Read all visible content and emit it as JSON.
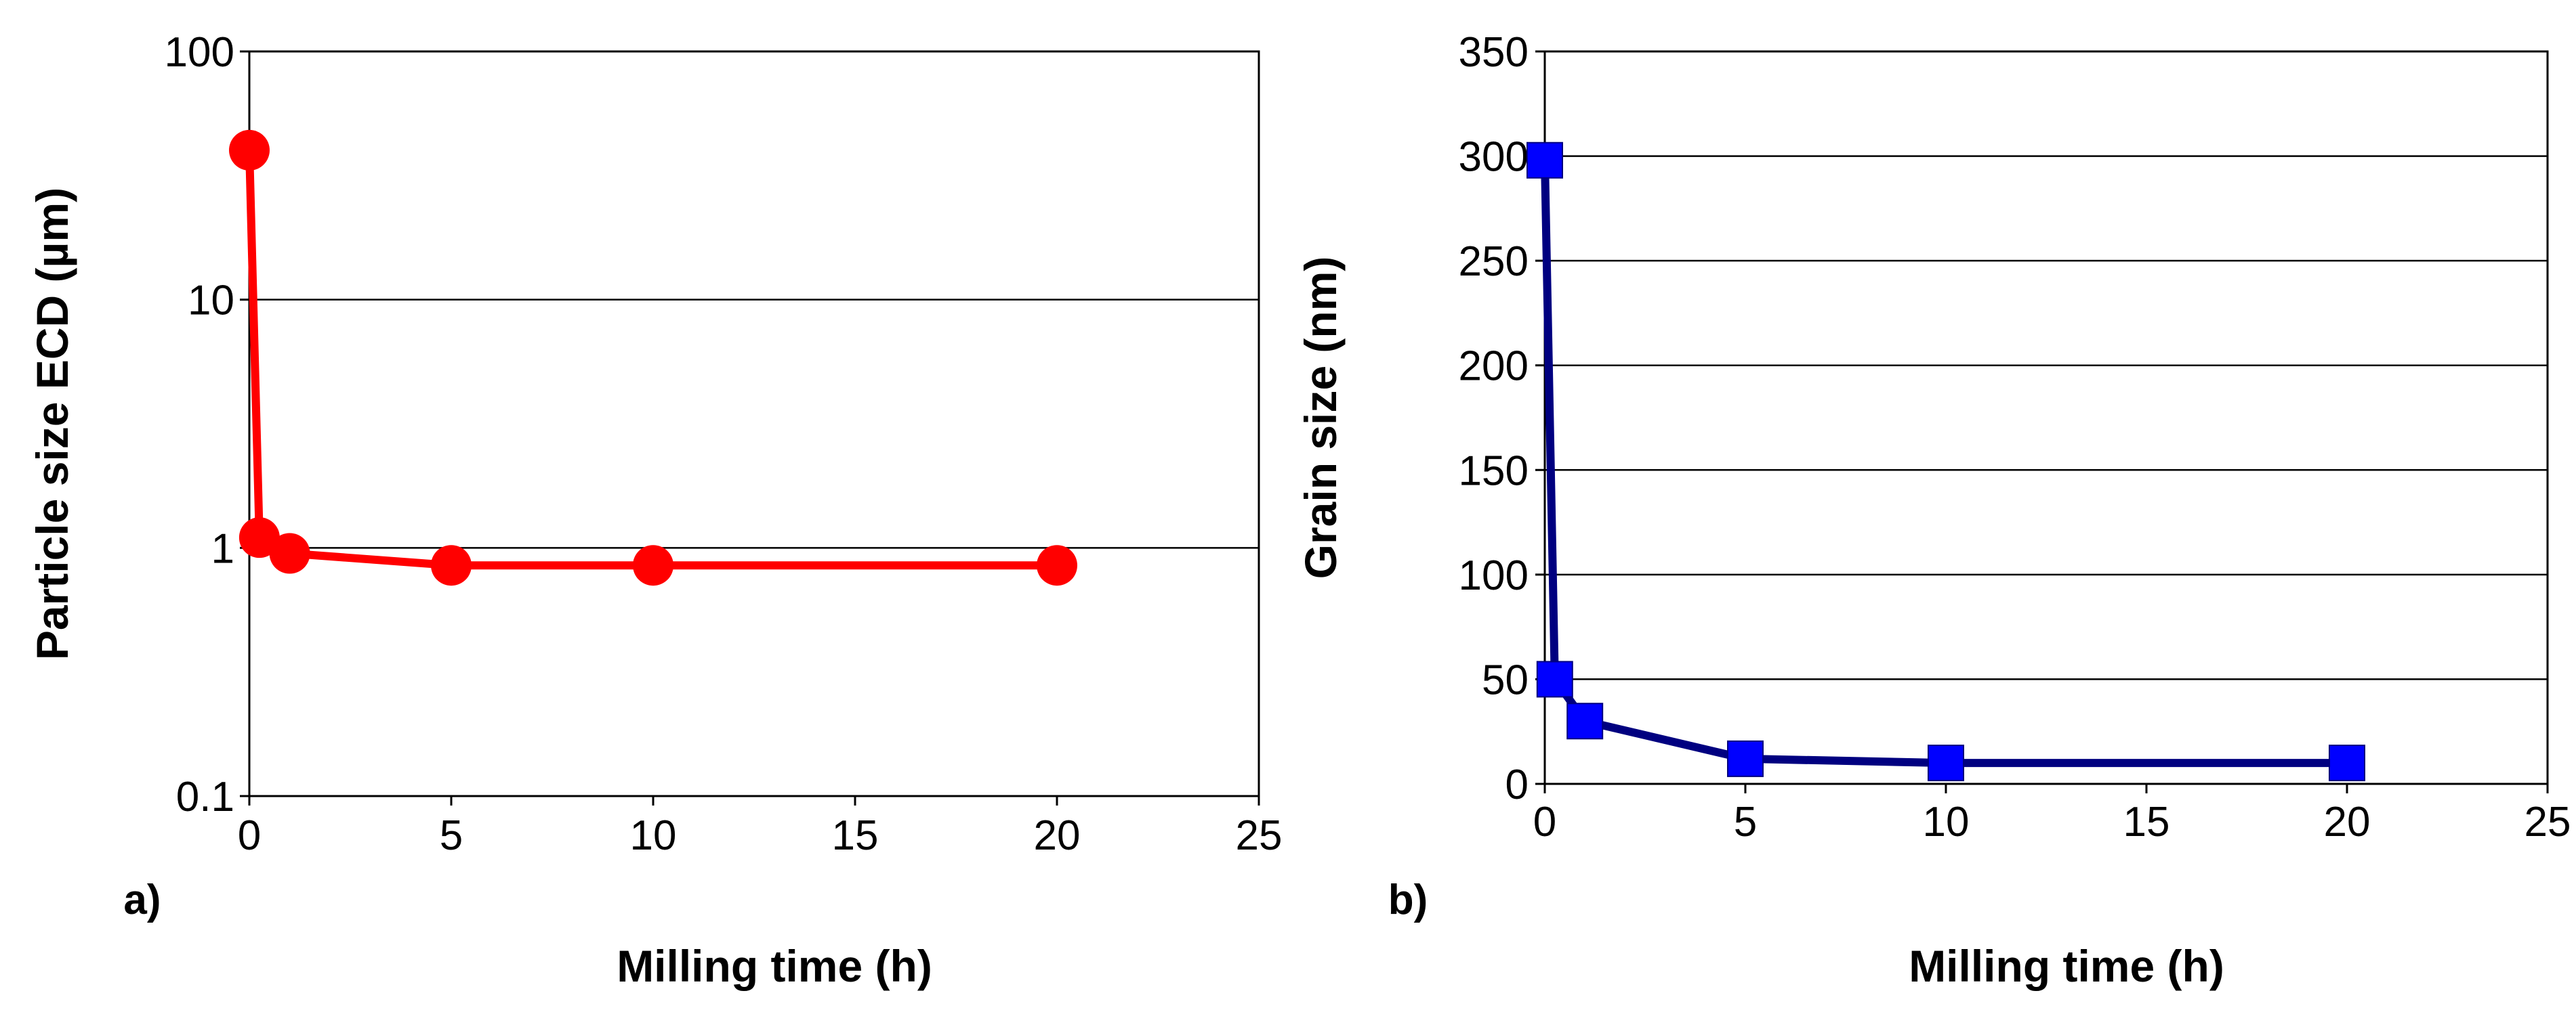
{
  "chart_data": [
    {
      "type": "line",
      "panel_label": "a)",
      "xlabel": "Milling time (h)",
      "ylabel": "Particle size ECD (µm)",
      "yscale": "log",
      "xlim": [
        0,
        25
      ],
      "ylim": [
        0.1,
        100
      ],
      "grid": true,
      "xticks": [
        0,
        5,
        10,
        15,
        20,
        25
      ],
      "xtick_labels": [
        "0",
        "5",
        "10",
        "15",
        "20",
        "25"
      ],
      "yticks": [
        0.1,
        1,
        10,
        100
      ],
      "ytick_labels": [
        "0.1",
        "1",
        "10",
        "100"
      ],
      "marker": "circle",
      "color": "#ff0000",
      "series": [
        {
          "name": "Particle size ECD",
          "x": [
            0,
            0.25,
            1,
            5,
            10,
            20
          ],
          "y": [
            40,
            1.1,
            0.95,
            0.85,
            0.85,
            0.85
          ]
        }
      ]
    },
    {
      "type": "line",
      "panel_label": "b)",
      "xlabel": "Milling time (h)",
      "ylabel": "Grain size (nm)",
      "yscale": "linear",
      "xlim": [
        0,
        25
      ],
      "ylim": [
        0,
        350
      ],
      "grid": true,
      "xticks": [
        0,
        5,
        10,
        15,
        20,
        25
      ],
      "xtick_labels": [
        "0",
        "5",
        "10",
        "15",
        "20",
        "25"
      ],
      "yticks": [
        0,
        50,
        100,
        150,
        200,
        250,
        300,
        350
      ],
      "ytick_labels": [
        "0",
        "50",
        "100",
        "150",
        "200",
        "250",
        "300",
        "350"
      ],
      "marker": "square",
      "color": "#0000ff",
      "line_color": "#000080",
      "series": [
        {
          "name": "Grain size",
          "x": [
            0,
            0.25,
            1,
            5,
            10,
            20
          ],
          "y": [
            298,
            50,
            30,
            12,
            10,
            10
          ]
        }
      ]
    }
  ]
}
